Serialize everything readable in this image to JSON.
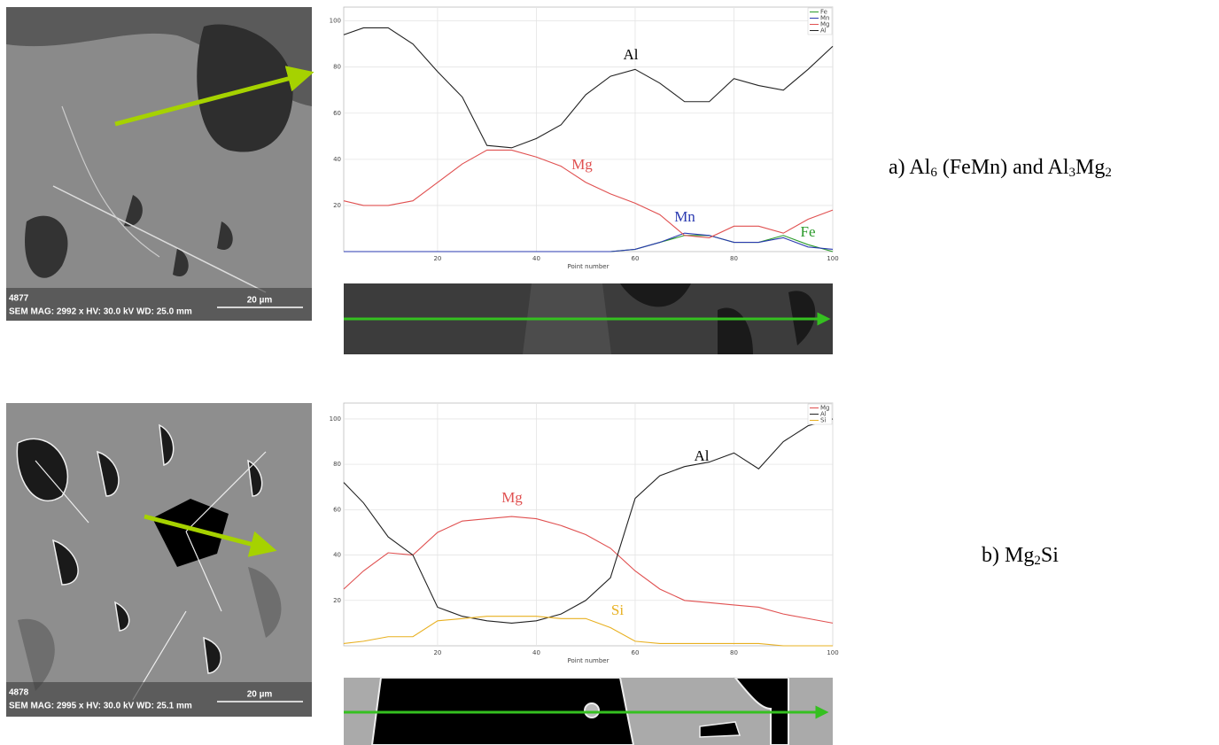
{
  "images": [
    {
      "id": "4877",
      "info": "SEM MAG: 2992 x HV: 30.0 kV WD: 25.0 mm",
      "scale": "20 µm"
    },
    {
      "id": "4878",
      "info": "SEM MAG: 2995 x HV: 30.0 kV WD: 25.1 mm",
      "scale": "20 µm"
    }
  ],
  "captions": [
    [
      "a) Al",
      "6",
      " (FeMn) and Al",
      "3",
      "Mg",
      "2"
    ],
    [
      "b) Mg",
      "2",
      "Si"
    ]
  ],
  "chart_data": [
    {
      "type": "line",
      "x_label": "Point number",
      "x": [
        1,
        5,
        10,
        15,
        20,
        25,
        30,
        35,
        40,
        45,
        50,
        55,
        60,
        65,
        70,
        75,
        80,
        85,
        90,
        95,
        100
      ],
      "series": [
        {
          "name": "Fe",
          "color": "#2a9a2a",
          "values": [
            0,
            0,
            0,
            0,
            0,
            0,
            0,
            0,
            0,
            0,
            0,
            0,
            1,
            4,
            7,
            7,
            4,
            4,
            7,
            3,
            0
          ]
        },
        {
          "name": "Mn",
          "color": "#2a3ab0",
          "values": [
            0,
            0,
            0,
            0,
            0,
            0,
            0,
            0,
            0,
            0,
            0,
            0,
            1,
            4,
            8,
            7,
            4,
            4,
            6,
            2,
            1
          ]
        },
        {
          "name": "Mg",
          "color": "#e05050",
          "values": [
            22,
            20,
            20,
            22,
            30,
            38,
            44,
            44,
            41,
            37,
            30,
            25,
            21,
            16,
            7,
            6,
            11,
            11,
            8,
            14,
            18
          ]
        },
        {
          "name": "Al",
          "color": "#222222",
          "values": [
            94,
            97,
            97,
            90,
            78,
            67,
            46,
            45,
            49,
            55,
            68,
            76,
            79,
            73,
            65,
            65,
            75,
            72,
            70,
            79,
            89
          ]
        }
      ],
      "annotations": [
        {
          "text": "Al",
          "color": "#000000"
        },
        {
          "text": "Mg",
          "color": "#e05050"
        },
        {
          "text": "Mn",
          "color": "#2a3ab0"
        },
        {
          "text": "Fe",
          "color": "#2a9a2a"
        }
      ],
      "xlim": [
        1,
        100
      ],
      "ylim": [
        0,
        106
      ],
      "xticks": [
        20,
        40,
        60,
        80,
        100
      ],
      "yticks": [
        20,
        40,
        60,
        80,
        100
      ],
      "grid": true,
      "legend": "top-right"
    },
    {
      "type": "line",
      "x_label": "Point number",
      "x": [
        1,
        5,
        10,
        15,
        20,
        25,
        30,
        35,
        40,
        45,
        50,
        55,
        60,
        65,
        70,
        75,
        80,
        85,
        90,
        95,
        100
      ],
      "series": [
        {
          "name": "Mg",
          "color": "#e05050",
          "values": [
            25,
            33,
            41,
            40,
            50,
            55,
            56,
            57,
            56,
            53,
            49,
            43,
            33,
            25,
            20,
            19,
            18,
            17,
            14,
            12,
            10
          ]
        },
        {
          "name": "Al",
          "color": "#222222",
          "values": [
            72,
            63,
            48,
            40,
            17,
            13,
            11,
            10,
            11,
            14,
            20,
            30,
            65,
            75,
            79,
            81,
            85,
            78,
            90,
            97,
            100
          ]
        },
        {
          "name": "Si",
          "color": "#e8b020",
          "values": [
            1,
            2,
            4,
            4,
            11,
            12,
            13,
            13,
            13,
            12,
            12,
            8,
            2,
            1,
            1,
            1,
            1,
            1,
            0,
            0,
            0
          ]
        }
      ],
      "annotations": [
        {
          "text": "Al",
          "color": "#000000"
        },
        {
          "text": "Mg",
          "color": "#e05050"
        },
        {
          "text": "Si",
          "color": "#e8b020"
        }
      ],
      "xlim": [
        1,
        100
      ],
      "ylim": [
        0,
        107
      ],
      "xticks": [
        20,
        40,
        60,
        80,
        100
      ],
      "yticks": [
        20,
        40,
        60,
        80,
        100
      ],
      "grid": true,
      "legend": "top-right"
    }
  ]
}
